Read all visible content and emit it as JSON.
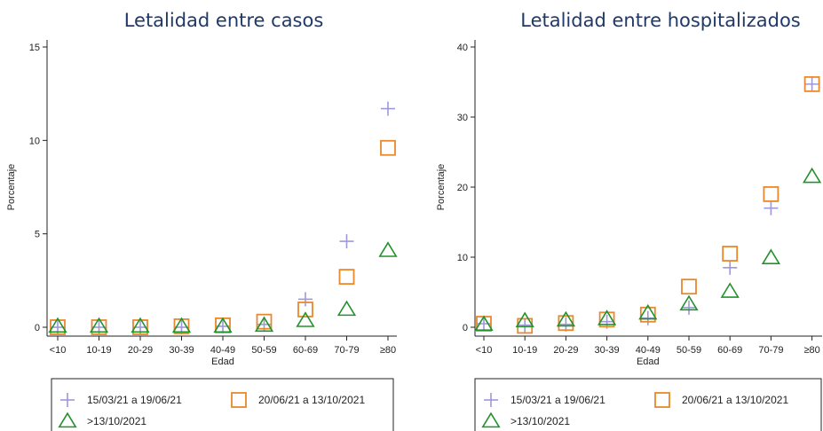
{
  "chart_data": [
    {
      "type": "scatter",
      "title": "Letalidad entre casos",
      "xlabel": "Edad",
      "ylabel": "Porcentaje",
      "categories": [
        "<10",
        "10-19",
        "20-29",
        "30-39",
        "40-49",
        "50-59",
        "60-69",
        "70-79",
        "≥80"
      ],
      "ylim": [
        0,
        15
      ],
      "yticks": [
        0,
        5,
        10,
        15
      ],
      "grid": false,
      "legend_position": "bottom",
      "series": [
        {
          "name": "15/03/21 a 19/06/21",
          "marker": "plus",
          "color": "#9f98d8",
          "values": [
            0.0,
            0.0,
            0.0,
            0.0,
            0.05,
            0.15,
            1.5,
            4.6,
            11.7
          ]
        },
        {
          "name": "20/06/21 a 13/10/2021",
          "marker": "square",
          "color": "#e8892e",
          "values": [
            0.0,
            0.0,
            0.0,
            0.05,
            0.1,
            0.3,
            0.95,
            2.7,
            9.6
          ]
        },
        {
          "name": ">13/10/2021",
          "marker": "triangle",
          "color": "#23922c",
          "values": [
            0.05,
            0.05,
            0.05,
            0.05,
            0.05,
            0.1,
            0.35,
            0.95,
            4.1
          ]
        }
      ]
    },
    {
      "type": "scatter",
      "title": "Letalidad entre hospitalizados",
      "xlabel": "Edad",
      "ylabel": "Porcentaje",
      "categories": [
        "<10",
        "10-19",
        "20-29",
        "30-39",
        "40-49",
        "50-59",
        "60-69",
        "70-79",
        "≥80"
      ],
      "ylim": [
        0,
        40
      ],
      "yticks": [
        0,
        10,
        20,
        30,
        40
      ],
      "grid": false,
      "legend_position": "bottom",
      "series": [
        {
          "name": "15/03/21 a 19/06/21",
          "marker": "plus",
          "color": "#9f98d8",
          "values": [
            0.5,
            0.3,
            0.4,
            0.8,
            1.3,
            2.8,
            8.5,
            17.0,
            34.7
          ]
        },
        {
          "name": "20/06/21 a 13/10/2021",
          "marker": "square",
          "color": "#e8892e",
          "values": [
            0.5,
            0.2,
            0.6,
            1.1,
            1.8,
            5.8,
            10.5,
            19.0,
            34.7
          ]
        },
        {
          "name": ">13/10/2021",
          "marker": "triangle",
          "color": "#23922c",
          "values": [
            0.4,
            0.9,
            1.0,
            1.2,
            2.0,
            3.3,
            5.1,
            9.9,
            21.5
          ]
        }
      ]
    }
  ]
}
